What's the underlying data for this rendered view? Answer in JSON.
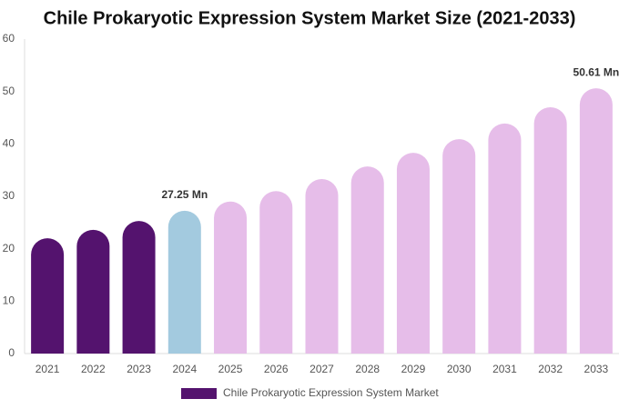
{
  "chart_data": {
    "type": "bar",
    "title": "Chile Prokaryotic Expression System Market Size (2021-2033)",
    "categories": [
      "2021",
      "2022",
      "2023",
      "2024",
      "2025",
      "2026",
      "2027",
      "2028",
      "2029",
      "2030",
      "2031",
      "2032",
      "2033"
    ],
    "series": [
      {
        "name": "Chile Prokaryotic Expression System Market",
        "color": "#54136e",
        "values": [
          22.0,
          23.6,
          25.3,
          27.25,
          29.0,
          31.0,
          33.3,
          35.7,
          38.3,
          40.9,
          43.9,
          47.0,
          50.61
        ],
        "colors": [
          "#54136e",
          "#54136e",
          "#54136e",
          "#a3cadf",
          "#e6bde9",
          "#e6bde9",
          "#e6bde9",
          "#e6bde9",
          "#e6bde9",
          "#e6bde9",
          "#e6bde9",
          "#e6bde9",
          "#e6bde9"
        ],
        "value_labels": [
          null,
          null,
          null,
          "27.25 Mn",
          null,
          null,
          null,
          null,
          null,
          null,
          null,
          null,
          "50.61 Mn"
        ]
      }
    ],
    "ylim": [
      0,
      60
    ],
    "yticks": [
      0,
      10,
      20,
      30,
      40,
      50,
      60
    ],
    "grid": false
  }
}
